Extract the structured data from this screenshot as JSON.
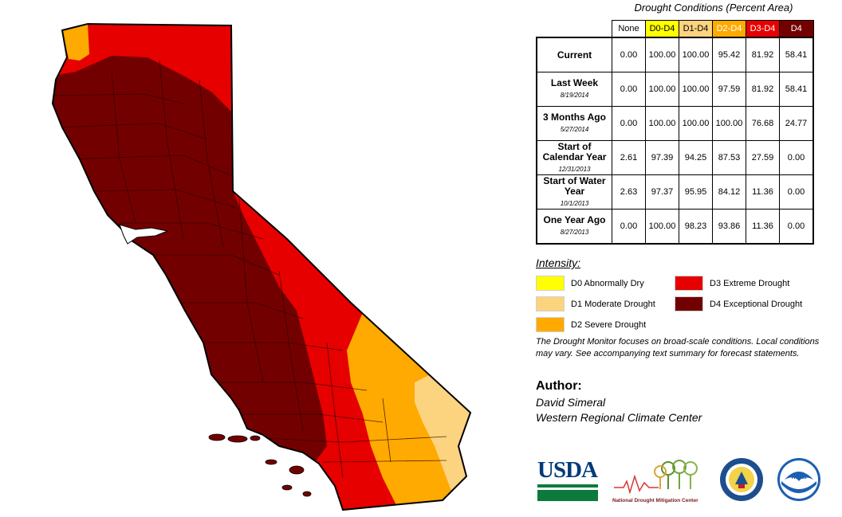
{
  "table": {
    "title": "Drought Conditions (Percent Area)",
    "columns": [
      {
        "label": "None",
        "color": "#ffffff",
        "text_color": "#000000"
      },
      {
        "label": "D0-D4",
        "color": "#ffff00",
        "text_color": "#000000"
      },
      {
        "label": "D1-D4",
        "color": "#fcd37f",
        "text_color": "#000000"
      },
      {
        "label": "D2-D4",
        "color": "#ffaa00",
        "text_color": "#ffffff"
      },
      {
        "label": "D3-D4",
        "color": "#e60000",
        "text_color": "#ffffff"
      },
      {
        "label": "D4",
        "color": "#730000",
        "text_color": "#ffffff"
      }
    ],
    "rows": [
      {
        "label": "Current",
        "date": "",
        "values": [
          "0.00",
          "100.00",
          "100.00",
          "95.42",
          "81.92",
          "58.41"
        ]
      },
      {
        "label": "Last Week",
        "date": "8/19/2014",
        "values": [
          "0.00",
          "100.00",
          "100.00",
          "97.59",
          "81.92",
          "58.41"
        ]
      },
      {
        "label": "3 Months Ago",
        "date": "5/27/2014",
        "values": [
          "0.00",
          "100.00",
          "100.00",
          "100.00",
          "76.68",
          "24.77"
        ]
      },
      {
        "label": "Start of Calendar Year",
        "date": "12/31/2013",
        "values": [
          "2.61",
          "97.39",
          "94.25",
          "87.53",
          "27.59",
          "0.00"
        ]
      },
      {
        "label": "Start of Water Year",
        "date": "10/1/2013",
        "values": [
          "2.63",
          "97.37",
          "95.95",
          "84.12",
          "11.36",
          "0.00"
        ]
      },
      {
        "label": "One Year Ago",
        "date": "8/27/2013",
        "values": [
          "0.00",
          "100.00",
          "98.23",
          "93.86",
          "11.36",
          "0.00"
        ]
      }
    ]
  },
  "legend": {
    "title": "Intensity:",
    "items": [
      {
        "label": "D0 Abnormally Dry",
        "color": "#ffff00"
      },
      {
        "label": "D1 Moderate Drought",
        "color": "#fcd37f"
      },
      {
        "label": "D2 Severe Drought",
        "color": "#ffaa00"
      },
      {
        "label": "D3 Extreme Drought",
        "color": "#e60000"
      },
      {
        "label": "D4 Exceptional Drought",
        "color": "#730000"
      }
    ]
  },
  "note": "The Drought Monitor focuses on broad-scale conditions. Local conditions may vary. See accompanying text summary for forecast statements.",
  "author": {
    "heading": "Author:",
    "name": "David Simeral",
    "org": "Western Regional Climate Center"
  },
  "logos": {
    "usda": {
      "text": "USDA",
      "icon": "usda-logo"
    },
    "ndmc": {
      "text": "National Drought Mitigation Center",
      "icon": "ndmc-logo"
    },
    "doc": {
      "icon": "department-of-commerce-seal"
    },
    "noaa": {
      "text": "noaa",
      "icon": "noaa-logo"
    }
  },
  "map": {
    "region": "California",
    "colors": {
      "d2": "#ffaa00",
      "d1": "#fcd37f",
      "d3": "#e60000",
      "d4": "#730000",
      "county_lines": "#2a0000",
      "outline": "#000000"
    }
  }
}
